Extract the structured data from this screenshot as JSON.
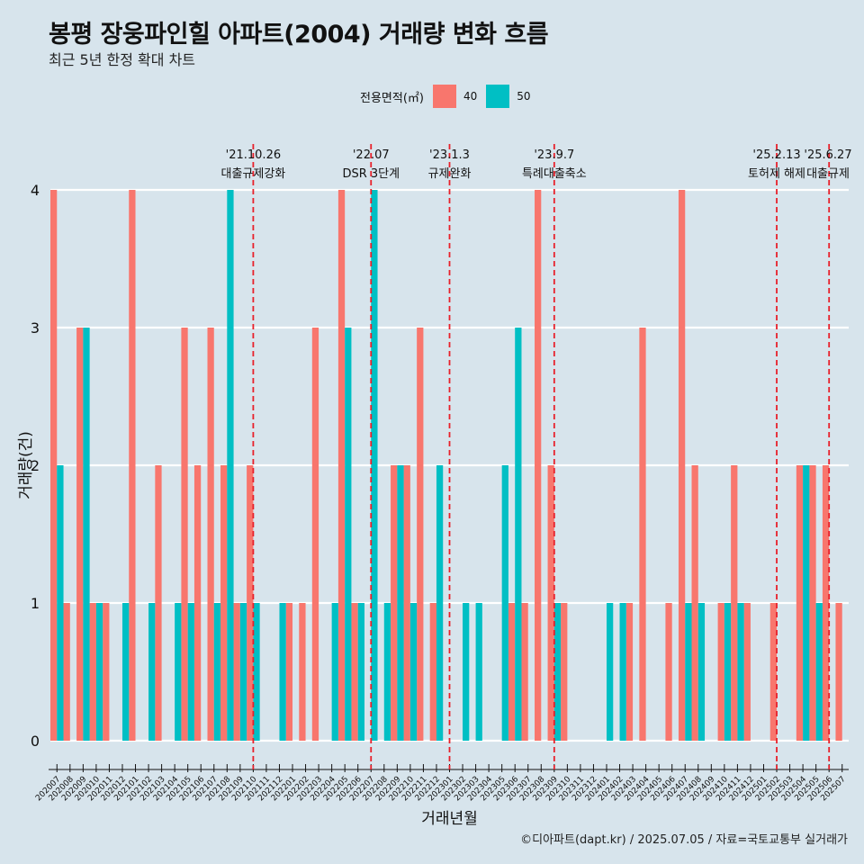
{
  "title": "봉평 장웅파인힐 아파트(2004) 거래량 변화 흐름",
  "subtitle": "최근 5년 한정 확대 차트",
  "footer": "©디아파트(dapt.kr) / 2025.07.05 / 자료=국토교통부 실거래가",
  "legend": {
    "title": "전용면적(㎡)",
    "items": [
      {
        "label": "40",
        "color": "#f8766d"
      },
      {
        "label": "50",
        "color": "#00bfc4"
      }
    ]
  },
  "chart_data": {
    "type": "bar",
    "xlabel": "거래년월",
    "ylabel": "거래량(건)",
    "ylim": [
      0,
      4
    ],
    "yticks": [
      0,
      1,
      2,
      3,
      4
    ],
    "grid": true,
    "legend_position": "top",
    "categories": [
      "202007",
      "202008",
      "202009",
      "202010",
      "202011",
      "202012",
      "202101",
      "202102",
      "202103",
      "202104",
      "202105",
      "202106",
      "202107",
      "202108",
      "202109",
      "202110",
      "202111",
      "202112",
      "202201",
      "202202",
      "202203",
      "202204",
      "202205",
      "202206",
      "202207",
      "202208",
      "202209",
      "202210",
      "202211",
      "202212",
      "202301",
      "202302",
      "202303",
      "202304",
      "202305",
      "202306",
      "202307",
      "202308",
      "202309",
      "202310",
      "202311",
      "202312",
      "202401",
      "202402",
      "202403",
      "202404",
      "202405",
      "202406",
      "202407",
      "202408",
      "202409",
      "202410",
      "202411",
      "202412",
      "202501",
      "202502",
      "202503",
      "202504",
      "202505",
      "202506",
      "202507"
    ],
    "series": [
      {
        "name": "40",
        "color": "#f8766d",
        "values": [
          4,
          1,
          3,
          1,
          1,
          0,
          4,
          0,
          2,
          0,
          3,
          2,
          3,
          2,
          1,
          2,
          0,
          0,
          1,
          1,
          3,
          0,
          4,
          1,
          0,
          0,
          2,
          2,
          3,
          1,
          0,
          0,
          0,
          0,
          0,
          1,
          1,
          4,
          2,
          1,
          0,
          0,
          0,
          0,
          1,
          3,
          0,
          1,
          4,
          2,
          0,
          1,
          2,
          1,
          0,
          1,
          0,
          2,
          2,
          2,
          1
        ]
      },
      {
        "name": "50",
        "color": "#00bfc4",
        "values": [
          2,
          0,
          3,
          1,
          0,
          1,
          0,
          1,
          0,
          1,
          1,
          0,
          1,
          4,
          1,
          1,
          0,
          1,
          0,
          0,
          0,
          1,
          3,
          1,
          4,
          1,
          2,
          1,
          0,
          2,
          0,
          1,
          1,
          0,
          2,
          3,
          0,
          0,
          1,
          0,
          0,
          0,
          1,
          1,
          0,
          0,
          0,
          0,
          1,
          1,
          0,
          1,
          1,
          0,
          0,
          0,
          0,
          2,
          1,
          0,
          0
        ]
      }
    ],
    "annotations": [
      {
        "date": "'21.10.26",
        "label": "대출규제강화",
        "x": "202110"
      },
      {
        "date": "'22.07",
        "label": "DSR 3단계",
        "x": "202207"
      },
      {
        "date": "'23.1.3",
        "label": "규제완화",
        "x": "202301"
      },
      {
        "date": "'23.9.7",
        "label": "특례대출축소",
        "x": "202309"
      },
      {
        "date": "'25.2.13",
        "label": "토허제 해제",
        "x": "202502"
      },
      {
        "date": "'25.6.27",
        "label": "대출규제",
        "x": "202506"
      }
    ]
  }
}
